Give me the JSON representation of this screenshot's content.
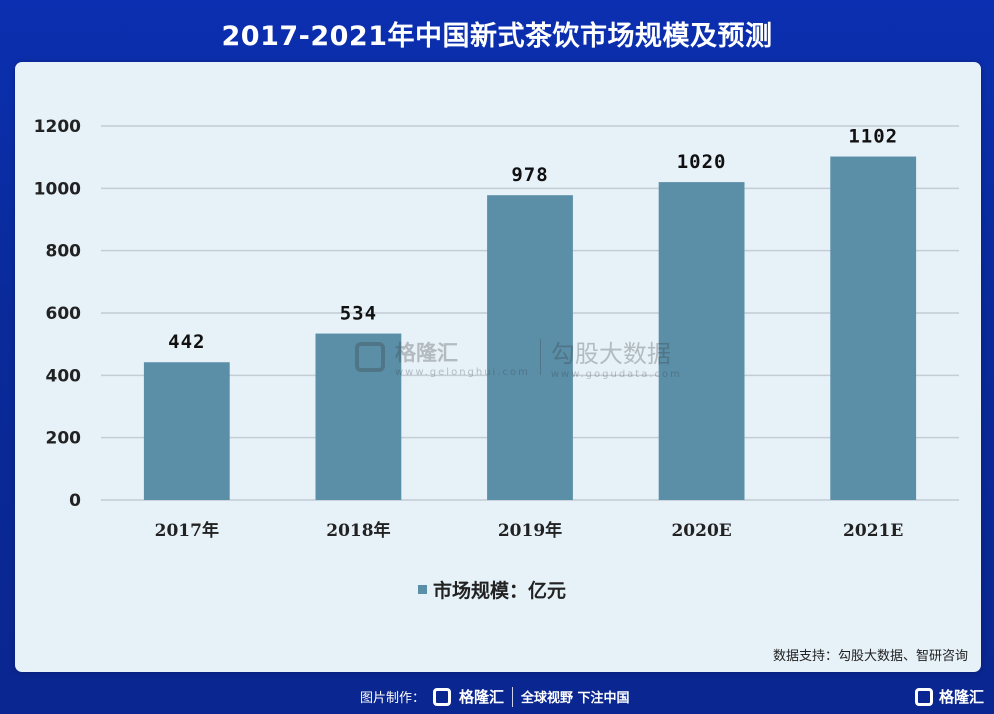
{
  "title": "2017-2021年中国新式茶饮市场规模及预测",
  "chart_data": {
    "type": "bar",
    "categories": [
      "2017年",
      "2018年",
      "2019年",
      "2020E",
      "2021E"
    ],
    "series": [
      {
        "name": "市场规模：亿元",
        "values": [
          442,
          534,
          978,
          1020,
          1102
        ]
      }
    ],
    "data_labels": [
      "442",
      "534",
      "978",
      "1020",
      "1102"
    ],
    "ylim": [
      0,
      1200
    ],
    "yticks": [
      0,
      200,
      400,
      600,
      800,
      1000,
      1200
    ],
    "grid": true,
    "legend_position": "bottom",
    "bar_color": "#5b8fa8"
  },
  "legend": {
    "label": "市场规模：亿元"
  },
  "watermark": {
    "brand": "格隆汇",
    "brand_url": "www.gelonghui.com",
    "partner": "勾股大数据",
    "partner_url": "www.gogudata.com"
  },
  "source": "数据支持：勾股大数据、智研咨询",
  "footer": {
    "prefix": "图片制作：",
    "brand": "格隆汇",
    "slogan": "全球视野 下注中国",
    "corner_brand": "格隆汇"
  },
  "colors": {
    "background": "#0b2fb0",
    "panel": "#e6f1f8",
    "bar": "#5b8fa8"
  }
}
